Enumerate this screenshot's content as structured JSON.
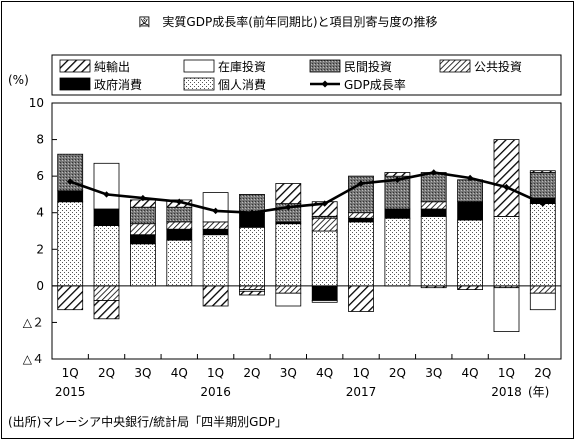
{
  "chart_data": {
    "type": "bar",
    "title": "図　実質GDP成長率(前年同期比)と項目別寄与度の推移",
    "unit_label": "(%)",
    "year_marker": "(年)",
    "source": "(出所)マレーシア中央銀行/統計局「四半期別GDP」",
    "categories": [
      "1Q",
      "2Q",
      "3Q",
      "4Q",
      "1Q",
      "2Q",
      "3Q",
      "4Q",
      "1Q",
      "2Q",
      "3Q",
      "4Q",
      "1Q",
      "2Q"
    ],
    "years": [
      "2015",
      "",
      "",
      "",
      "2016",
      "",
      "",
      "",
      "2017",
      "",
      "",
      "",
      "2018",
      ""
    ],
    "ylim": [
      -4,
      10
    ],
    "yticks": [
      {
        "v": 10,
        "label": "10"
      },
      {
        "v": 8,
        "label": "8"
      },
      {
        "v": 6,
        "label": "6"
      },
      {
        "v": 4,
        "label": "4"
      },
      {
        "v": 2,
        "label": "2"
      },
      {
        "v": 0,
        "label": "0"
      },
      {
        "v": -2,
        "label": "△２"
      },
      {
        "v": -4,
        "label": "△４"
      }
    ],
    "series": [
      {
        "name": "個人消費",
        "pattern": "dots",
        "values": [
          4.6,
          3.3,
          2.3,
          2.5,
          2.8,
          3.2,
          3.4,
          3.0,
          3.5,
          3.7,
          3.8,
          3.6,
          3.8,
          4.5
        ]
      },
      {
        "name": "政府消費",
        "pattern": "black",
        "values": [
          0.6,
          0.9,
          0.5,
          0.6,
          0.3,
          0.8,
          0.1,
          -0.8,
          0.2,
          0.5,
          0.4,
          1.0,
          0.0,
          0.3
        ]
      },
      {
        "name": "公共投資",
        "pattern": "hatch-dense",
        "values": [
          0.0,
          -0.8,
          0.6,
          0.4,
          0.4,
          -0.2,
          -0.4,
          0.7,
          0.3,
          0.0,
          0.4,
          0.0,
          -0.1,
          -0.4
        ]
      },
      {
        "name": "民間投資",
        "pattern": "dark-gray",
        "values": [
          2.0,
          0.0,
          0.9,
          0.8,
          0.0,
          1.0,
          1.0,
          0.1,
          2.0,
          1.8,
          1.6,
          1.2,
          0.0,
          1.4
        ]
      },
      {
        "name": "在庫投資",
        "pattern": "white",
        "values": [
          0.0,
          2.5,
          0.0,
          0.0,
          1.6,
          -0.1,
          -0.7,
          -0.1,
          0.0,
          0.0,
          0.0,
          0.0,
          -2.4,
          -0.9
        ]
      },
      {
        "name": "純輸出",
        "pattern": "hatch-wide",
        "values": [
          -1.3,
          -1.0,
          0.4,
          0.4,
          -1.1,
          -0.2,
          1.1,
          0.8,
          -1.4,
          0.2,
          -0.1,
          -0.2,
          4.2,
          0.1
        ]
      }
    ],
    "line": {
      "name": "GDP成長率",
      "values": [
        5.7,
        5.0,
        4.8,
        4.6,
        4.1,
        4.0,
        4.3,
        4.5,
        5.6,
        5.8,
        6.2,
        5.9,
        5.4,
        4.5
      ]
    },
    "legend": {
      "position": "top",
      "columns": 4,
      "order": [
        "純輸出",
        "在庫投資",
        "民間投資",
        "公共投資",
        "政府消費",
        "個人消費",
        "GDP成長率"
      ]
    },
    "grid": false
  }
}
